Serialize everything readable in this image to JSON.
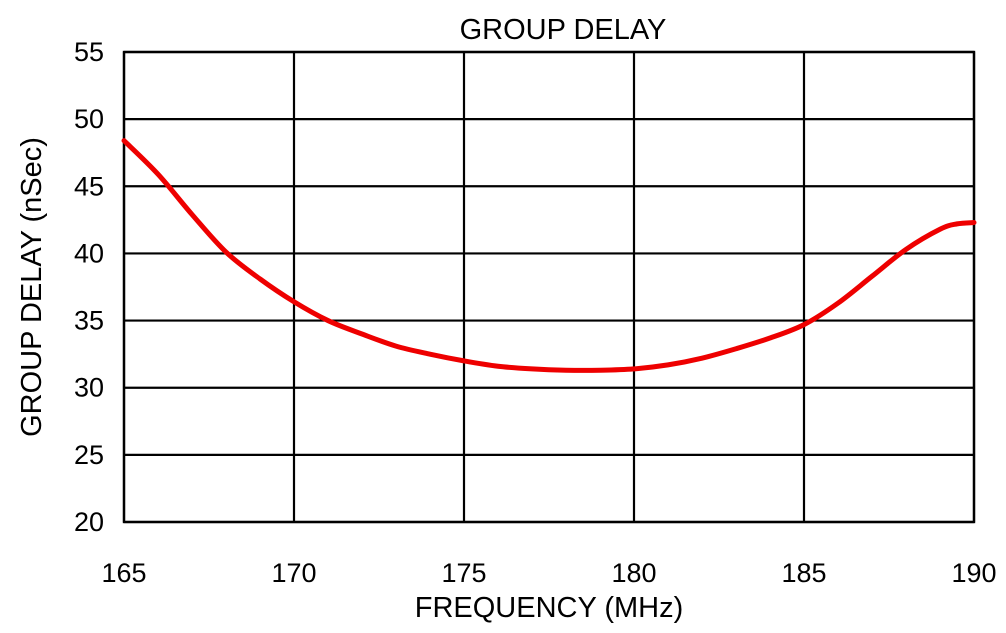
{
  "chart_data": {
    "type": "line",
    "title": "GROUP DELAY",
    "xlabel": "FREQUENCY (MHz)",
    "ylabel": "GROUP DELAY (nSec)",
    "xlim": [
      165,
      190
    ],
    "ylim": [
      20,
      55
    ],
    "x_ticks": [
      165,
      170,
      175,
      180,
      185,
      190
    ],
    "y_ticks": [
      20,
      25,
      30,
      35,
      40,
      45,
      50,
      55
    ],
    "grid": true,
    "series": [
      {
        "color": "#ee0000",
        "x": [
          165,
          166,
          167,
          168,
          169,
          170,
          171,
          172,
          173,
          174,
          175,
          176,
          177,
          178,
          179,
          180,
          181,
          182,
          183,
          184,
          185,
          186,
          187,
          188,
          189,
          189.5,
          190
        ],
        "y": [
          48.4,
          45.9,
          42.9,
          40.1,
          38.1,
          36.4,
          35.0,
          34.0,
          33.1,
          32.5,
          32.0,
          31.6,
          31.4,
          31.3,
          31.3,
          31.4,
          31.7,
          32.2,
          32.9,
          33.7,
          34.7,
          36.3,
          38.3,
          40.3,
          41.8,
          42.2,
          42.3
        ]
      }
    ]
  }
}
